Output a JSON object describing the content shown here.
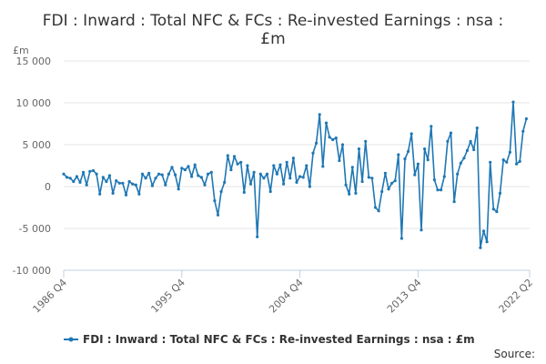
{
  "chart_data": {
    "type": "line",
    "title_lines": [
      "FDI : Inward : Total NFC & FCs : Re-invested Earnings : nsa :",
      "£m"
    ],
    "y_unit": "£m",
    "ylim": [
      -10000,
      15000
    ],
    "y_ticks": [
      -10000,
      -5000,
      0,
      5000,
      10000,
      15000
    ],
    "y_tick_labels": [
      "-10 000",
      "-5 000",
      "0",
      "5 000",
      "10 000",
      "15 000"
    ],
    "x_ticks": [
      "1986 Q4",
      "1995 Q4",
      "2004 Q4",
      "2013 Q4",
      "2022 Q2"
    ],
    "grid": "horizontal",
    "legend_position": "bottom",
    "series": [
      {
        "name": "FDI : Inward : Total NFC & FCs : Re-invested Earnings : nsa : £m",
        "color": "#1f77b4",
        "start": "1986 Q4",
        "values": [
          1500,
          1100,
          1000,
          600,
          1200,
          500,
          1700,
          200,
          1800,
          1900,
          1500,
          -900,
          1100,
          600,
          1300,
          -800,
          700,
          400,
          400,
          -1000,
          600,
          300,
          200,
          -900,
          1500,
          1000,
          1600,
          100,
          1000,
          1500,
          1400,
          200,
          1500,
          2300,
          1400,
          -300,
          2200,
          2000,
          2400,
          1200,
          2600,
          1300,
          1100,
          200,
          1500,
          1700,
          -1700,
          -3400,
          -600,
          500,
          3700,
          2000,
          3600,
          2700,
          2900,
          -700,
          2500,
          300,
          1700,
          -6000,
          1500,
          1000,
          1500,
          -600,
          2500,
          1500,
          2600,
          300,
          2900,
          1000,
          3400,
          500,
          1200,
          1100,
          2500,
          0,
          4000,
          5200,
          8600,
          2400,
          7600,
          5900,
          5600,
          5800,
          3100,
          5000,
          200,
          -900,
          2300,
          -800,
          4500,
          600,
          5400,
          1100,
          1000,
          -2500,
          -2900,
          -600,
          1600,
          -300,
          400,
          700,
          3800,
          -6200,
          3300,
          4200,
          6300,
          1400,
          2700,
          -5200,
          4500,
          3200,
          7200,
          800,
          -400,
          -400,
          1200,
          5400,
          6400,
          -1800,
          1500,
          2800,
          3400,
          4300,
          5400,
          4400,
          7000,
          -7300,
          -5300,
          -6600,
          2900,
          -2700,
          -3000,
          -800,
          3200,
          2900,
          4100,
          10100,
          2700,
          3000,
          6600,
          8100
        ]
      }
    ],
    "source_label": "Source:"
  },
  "style": {
    "line_color": "#1f77b4",
    "grid_color": "#e6e6e6",
    "axis_color": "#c0d0e0",
    "text_color": "#333333",
    "tick_color": "#666666"
  }
}
